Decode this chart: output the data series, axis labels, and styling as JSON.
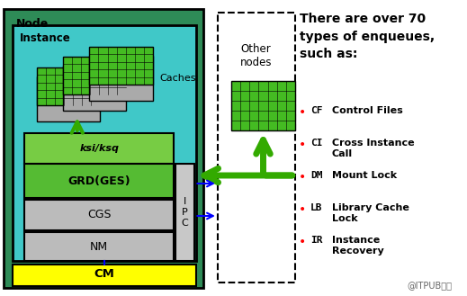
{
  "fig_width": 5.19,
  "fig_height": 3.29,
  "dpi": 100,
  "bg_color": "#ffffff",
  "colors": {
    "node_green": "#2e8b57",
    "instance_cyan": "#40c8c8",
    "cm_yellow": "#ffff00",
    "grd_green": "#55bb33",
    "ksi_green": "#77cc44",
    "gray": "#bbbbbb",
    "ipc_gray": "#c8c8c8",
    "arrow_green": "#33aa00",
    "black": "#000000",
    "blue": "#0000ff",
    "white": "#ffffff",
    "red": "#ff0000",
    "cache_green": "#44bb22",
    "cache_gray": "#aaaaaa"
  },
  "watermark": "@ITPUB博客",
  "title_text": "There are over 70\ntypes of enqueues,\nsuch as:",
  "bullets": [
    {
      "code": "CF",
      "desc": "Control Files"
    },
    {
      "code": "CI",
      "desc": "Cross Instance\nCall"
    },
    {
      "code": "DM",
      "desc": "Mount Lock"
    },
    {
      "code": "LB",
      "desc": "Library Cache\nLock"
    },
    {
      "code": "IR",
      "desc": "Instance\nRecovery"
    }
  ]
}
